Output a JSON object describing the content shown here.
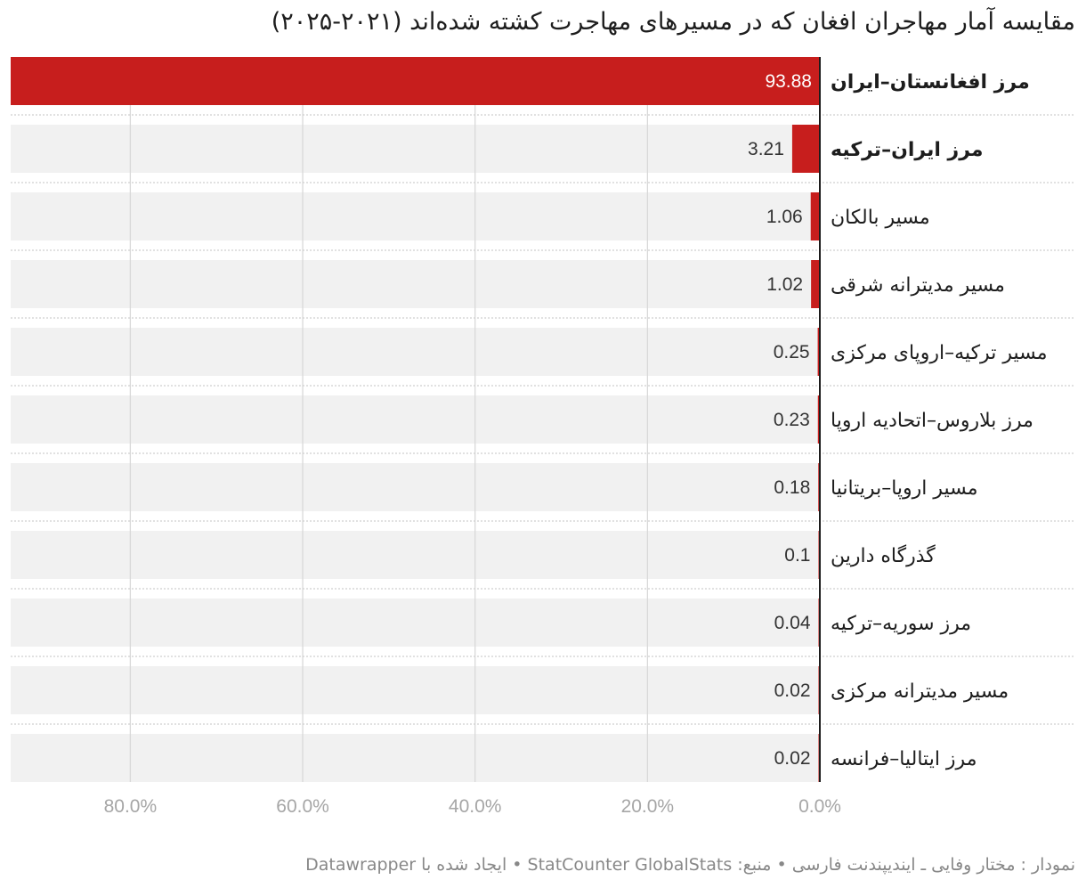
{
  "title": "مقایسه آمار مهاجران افغان که در مسیرهای مهاجرت کشته شده‌اند (۲۰۲۱-۲۰۲۵)",
  "footer": "نمودار : مختار وفایی ـ ایندیپندنت فارسی • منبع: StatCounter GlobalStats • ایجاد شده با Datawrapper",
  "colors": {
    "bar": "#c71e1d",
    "row_bg": "#f1f1f1",
    "grid": "#d9d9d9",
    "axis": "#1d1d1d",
    "separator": "#cfcfcf"
  },
  "chart_data": {
    "type": "bar",
    "orientation": "horizontal",
    "direction": "right-to-left",
    "title": "مقایسه آمار مهاجران افغان که در مسیرهای مهاجرت کشته شده‌اند (۲۰۲۱-۲۰۲۵)",
    "categories": [
      "مرز افغانستان–ایران",
      "مرز ایران–ترکیه",
      "مسیر بالکان",
      "مسیر مدیترانه شرقی",
      "مسیر ترکیه–اروپای مرکزی",
      "مرز بلاروس–اتحادیه اروپا",
      "مسیر اروپا–بریتانیا",
      "گذرگاه دارین",
      "مرز سوریه–ترکیه",
      "مسیر مدیترانه مرکزی",
      "مرز ایتالیا–فرانسه"
    ],
    "values": [
      93.88,
      3.21,
      1.06,
      1.02,
      0.25,
      0.23,
      0.18,
      0.1,
      0.04,
      0.02,
      0.02
    ],
    "value_labels": [
      "93.88",
      "3.21",
      "1.06",
      "1.02",
      "0.25",
      "0.23",
      "0.18",
      "0.1",
      "0.04",
      "0.02",
      "0.02"
    ],
    "bold_categories": [
      0,
      1
    ],
    "xlim": [
      0,
      93.88
    ],
    "xticks": [
      0,
      20,
      40,
      60,
      80
    ],
    "xtick_labels": [
      "0.0%",
      "20.0%",
      "40.0%",
      "60.0%",
      "80.0%"
    ],
    "xlabel": "",
    "ylabel": "",
    "grid": true
  }
}
